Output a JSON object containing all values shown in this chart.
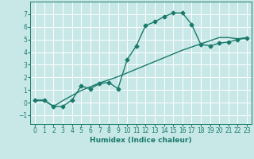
{
  "xlabel": "Humidex (Indice chaleur)",
  "background_color": "#c8e8e8",
  "grid_color": "#ffffff",
  "line_color": "#1a7a6a",
  "xlim": [
    -0.5,
    23.5
  ],
  "ylim": [
    -1.7,
    8.0
  ],
  "yticks": [
    -1,
    0,
    1,
    2,
    3,
    4,
    5,
    6,
    7
  ],
  "xticks": [
    0,
    1,
    2,
    3,
    4,
    5,
    6,
    7,
    8,
    9,
    10,
    11,
    12,
    13,
    14,
    15,
    16,
    17,
    18,
    19,
    20,
    21,
    22,
    23
  ],
  "curve1_x": [
    0,
    1,
    2,
    3,
    4,
    5,
    6,
    7,
    8,
    9,
    10,
    11,
    12,
    13,
    14,
    15,
    16,
    17,
    18,
    19,
    20,
    21,
    22,
    23
  ],
  "curve1_y": [
    0.2,
    0.2,
    -0.3,
    -0.3,
    0.2,
    1.3,
    1.1,
    1.5,
    1.6,
    1.1,
    3.4,
    4.5,
    6.1,
    6.4,
    6.8,
    7.1,
    7.1,
    6.2,
    4.6,
    4.5,
    4.7,
    4.8,
    5.0,
    5.1
  ],
  "curve2_x": [
    0,
    1,
    2,
    3,
    4,
    5,
    6,
    7,
    8,
    9,
    10,
    11,
    12,
    13,
    14,
    15,
    16,
    17,
    18,
    19,
    20,
    21,
    22,
    23
  ],
  "curve2_y": [
    0.15,
    0.15,
    -0.3,
    0.15,
    0.55,
    0.95,
    1.25,
    1.55,
    1.8,
    2.05,
    2.35,
    2.65,
    2.95,
    3.25,
    3.55,
    3.85,
    4.15,
    4.4,
    4.65,
    4.9,
    5.15,
    5.15,
    5.05,
    5.15
  ],
  "tick_fontsize": 5.5,
  "xlabel_fontsize": 6.5,
  "marker_size": 2.5
}
